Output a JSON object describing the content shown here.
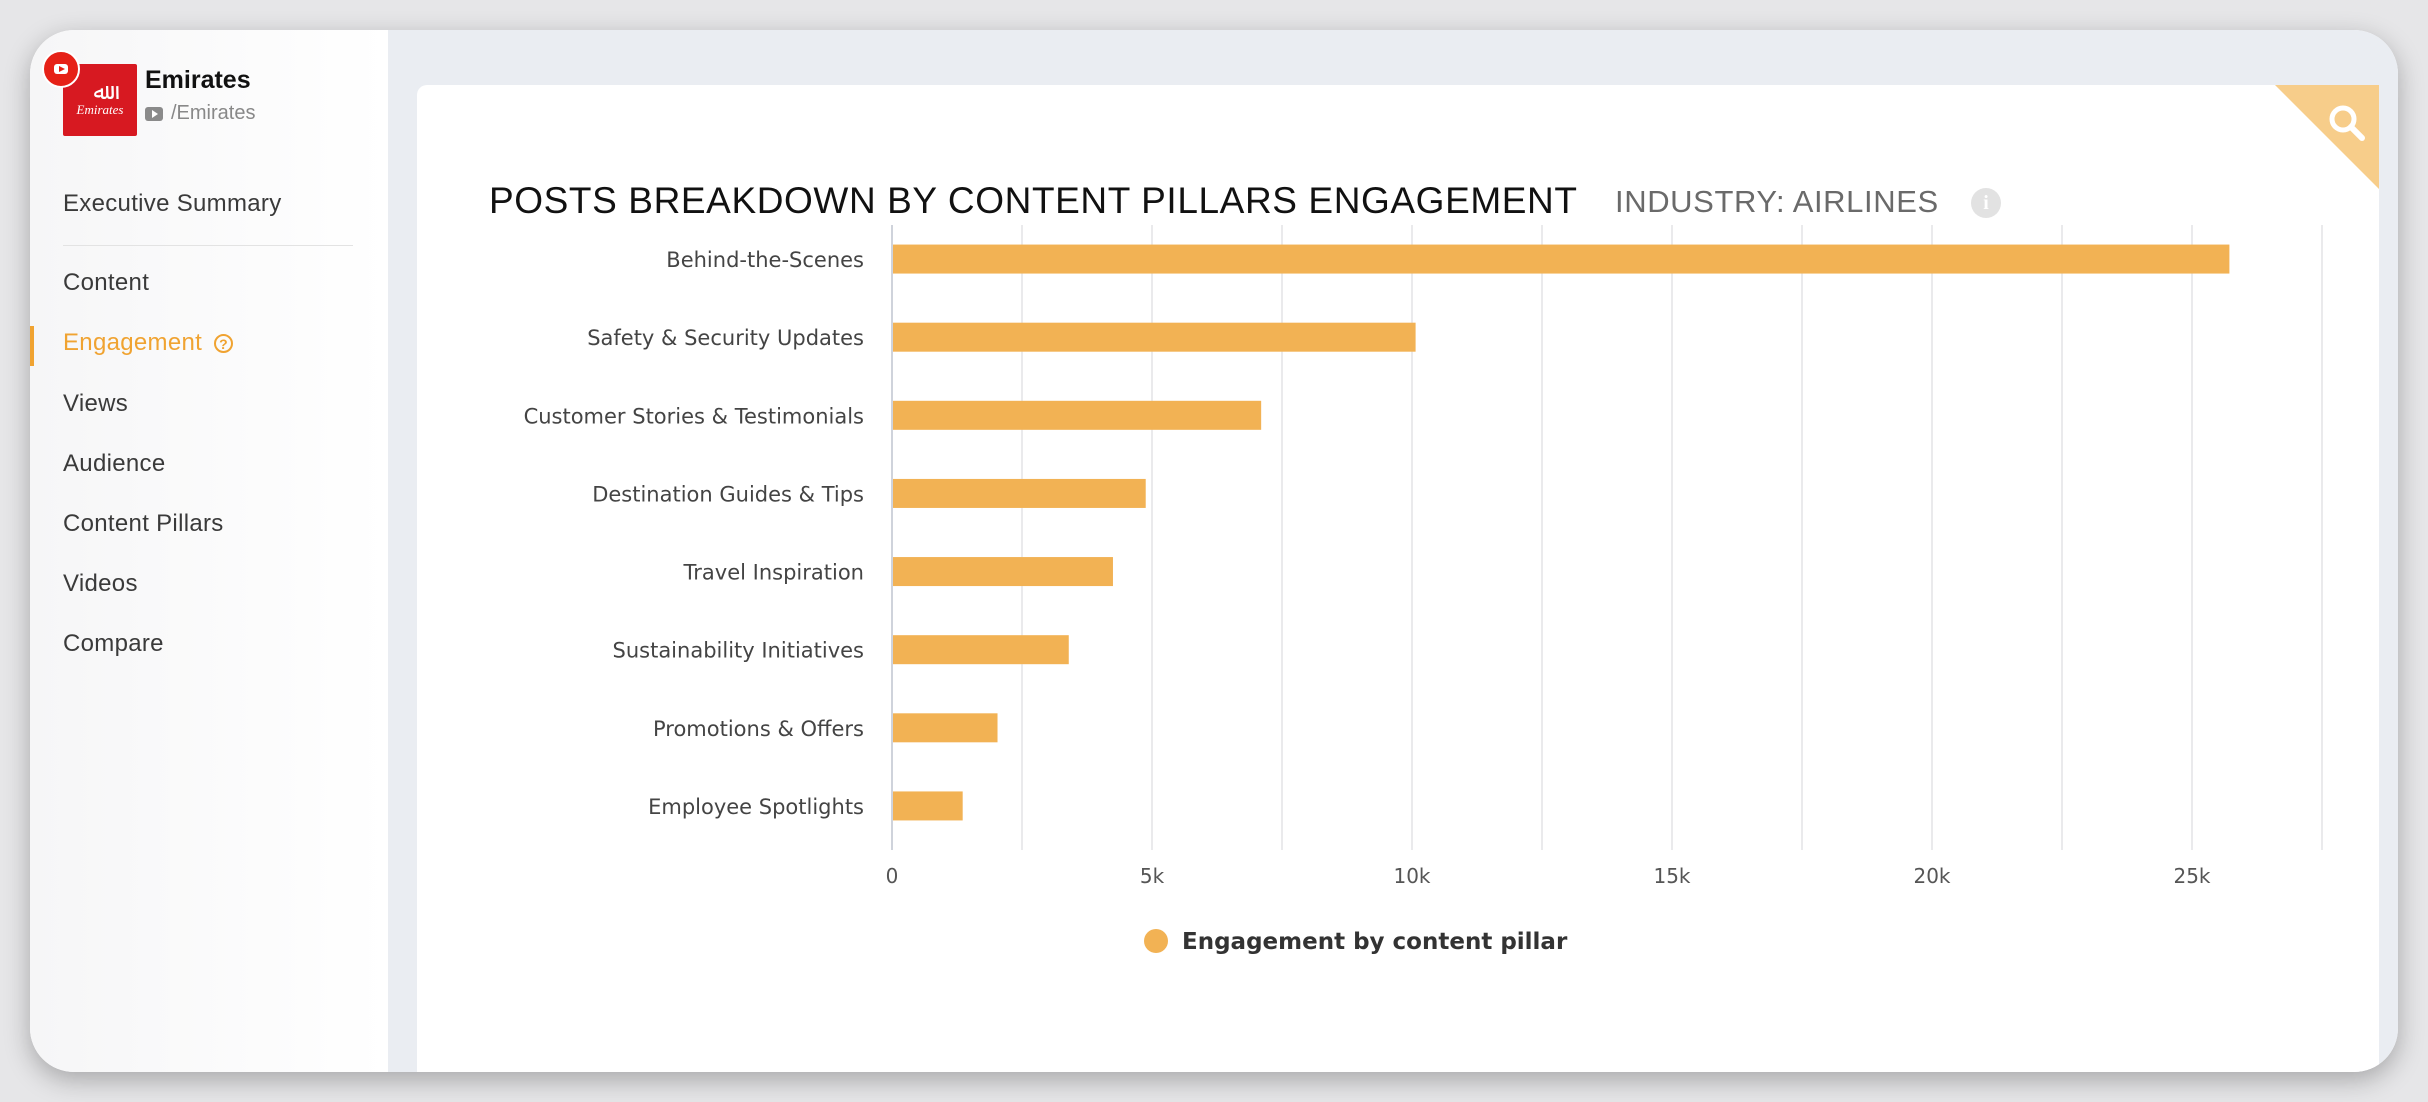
{
  "profile": {
    "logo_text": "Emirates",
    "name": "Emirates",
    "handle": "/Emirates"
  },
  "nav": {
    "items": [
      {
        "label": "Executive Summary"
      },
      {
        "label": "Content"
      },
      {
        "label": "Engagement",
        "active": true
      },
      {
        "label": "Views"
      },
      {
        "label": "Audience"
      },
      {
        "label": "Content Pillars"
      },
      {
        "label": "Videos"
      },
      {
        "label": "Compare"
      }
    ]
  },
  "colors": {
    "accent": "#f0a331",
    "bar": "#f2b254",
    "youtube": "#e62117",
    "brand": "#d71921"
  },
  "icons": [
    "youtube-icon",
    "help-icon",
    "info-icon",
    "search-icon"
  ],
  "chart_data": {
    "type": "bar",
    "orientation": "horizontal",
    "title": "POSTS BREAKDOWN BY CONTENT PILLARS ENGAGEMENT",
    "subtitle": "INDUSTRY: AIRLINES",
    "categories": [
      "Behind-the-Scenes",
      "Safety & Security Updates",
      "Customer Stories & Testimonials",
      "Destination Guides & Tips",
      "Travel Inspiration",
      "Sustainability Initiatives",
      "Promotions & Offers",
      "Employee Spotlights"
    ],
    "series": [
      {
        "name": "Engagement by content pillar",
        "values": [
          25700,
          10050,
          7080,
          4860,
          4230,
          3380,
          2010,
          1340
        ]
      }
    ],
    "xlim": [
      0,
      27500
    ],
    "xticks": [
      0,
      5000,
      10000,
      15000,
      20000,
      25000
    ],
    "xtick_labels": [
      "0",
      "5k",
      "10k",
      "15k",
      "20k",
      "25k"
    ],
    "grid": true,
    "legend_position": "bottom"
  }
}
